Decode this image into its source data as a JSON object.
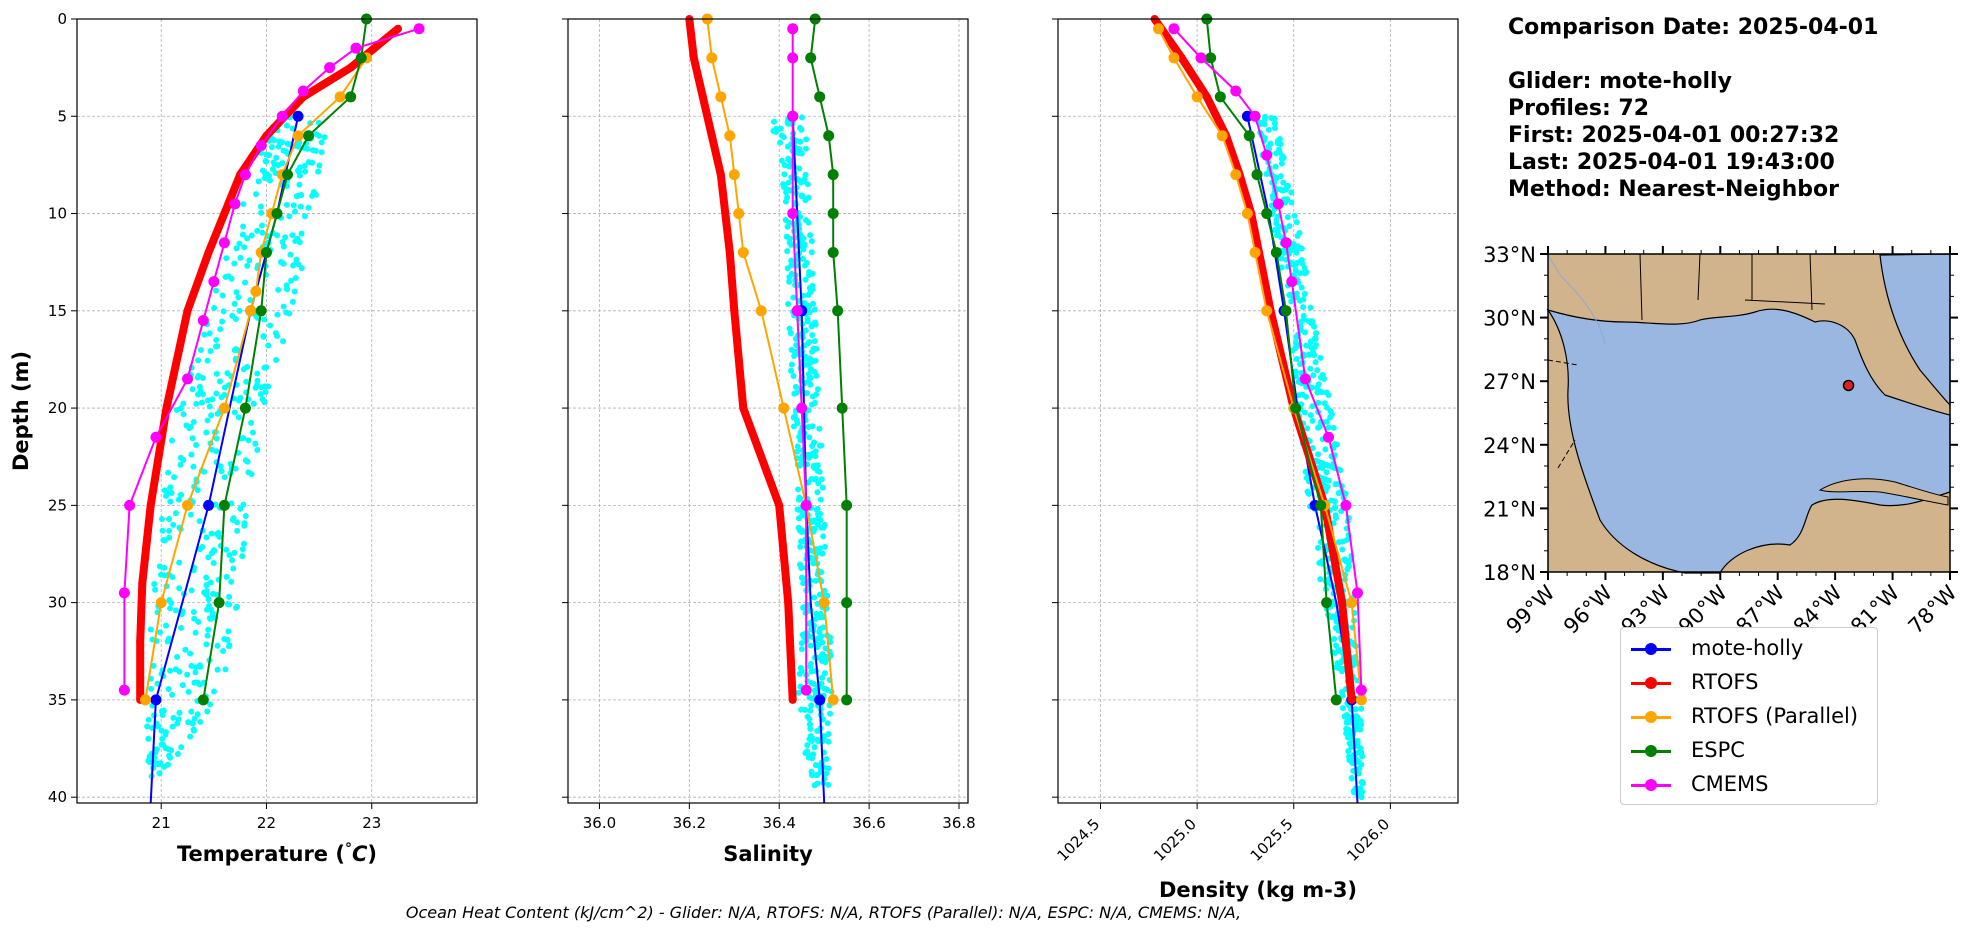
{
  "info": {
    "comparison_date": "Comparison Date: 2025-04-01",
    "glider": "Glider: mote-holly",
    "profiles": "Profiles: 72",
    "first": "First: 2025-04-01 00:27:32",
    "last": "Last: 2025-04-01 19:43:00",
    "method": "Method: Nearest-Neighbor"
  },
  "footer_text": "Ocean Heat Content (kJ/cm^2) - Glider: N/A,  RTOFS: N/A,  RTOFS (Parallel): N/A,  ESPC: N/A,  CMEMS: N/A,",
  "legend": [
    {
      "label": "mote-holly",
      "color": "#0000ff"
    },
    {
      "label": "RTOFS",
      "color": "#ff0000"
    },
    {
      "label": "RTOFS (Parallel)",
      "color": "#ffa500"
    },
    {
      "label": "ESPC",
      "color": "#008000"
    },
    {
      "label": "CMEMS",
      "color": "#ff00ff"
    }
  ],
  "chart_data": [
    {
      "type": "line",
      "xlabel": "Temperature (°C)",
      "ylabel": "Depth (m)",
      "xlim": [
        20.2,
        24.0
      ],
      "ylim": [
        40.3,
        0
      ],
      "xticks": [
        21,
        22,
        23
      ],
      "xtick_labels": [
        "21",
        "22",
        "23"
      ],
      "yticks": [
        0,
        5,
        10,
        15,
        20,
        25,
        30,
        35,
        40
      ],
      "ytick_labels": [
        "0",
        "5",
        "10",
        "15",
        "20",
        "25",
        "30",
        "35",
        "40"
      ],
      "grid": true,
      "glider_scatter_band": {
        "color": "#00ffff",
        "depth": [
          5,
          5,
          10,
          15,
          20,
          25,
          30,
          35,
          39
        ],
        "min": [
          22.35,
          22.05,
          21.75,
          21.45,
          21.15,
          21.0,
          20.9,
          20.85,
          20.85
        ],
        "max": [
          22.65,
          22.6,
          22.45,
          22.25,
          22.0,
          21.85,
          21.75,
          21.55,
          21.0
        ]
      },
      "series": [
        {
          "name": "mote-holly",
          "color": "#0000ff",
          "width": 2,
          "markers": [
            [
              22.3,
              5
            ],
            [
              21.85,
              15
            ],
            [
              21.45,
              25
            ],
            [
              20.95,
              35
            ]
          ],
          "x": [
            22.3,
            22.1,
            21.85,
            21.65,
            21.45,
            21.2,
            20.95,
            20.9
          ],
          "y": [
            5,
            10,
            15,
            20,
            25,
            30,
            35,
            40.3
          ]
        },
        {
          "name": "RTOFS",
          "color": "#ff0000",
          "width": 8,
          "marker_size": 4,
          "x": [
            23.25,
            22.8,
            22.35,
            22.0,
            21.75,
            21.6,
            21.45,
            21.25,
            21.05,
            20.9,
            20.82,
            20.8,
            20.8
          ],
          "y": [
            0.5,
            2.5,
            4,
            6,
            8,
            10,
            12,
            15,
            20,
            25,
            29,
            32,
            35
          ]
        },
        {
          "name": "RTOFS (Parallel)",
          "color": "#ffa500",
          "width": 2,
          "x": [
            22.95,
            22.7,
            22.3,
            22.15,
            22.05,
            21.95,
            21.9,
            21.85,
            21.6,
            21.25,
            21.0,
            20.85
          ],
          "y": [
            2,
            4,
            6,
            8,
            10,
            12,
            14,
            15,
            20,
            25,
            30,
            35
          ]
        },
        {
          "name": "ESPC",
          "color": "#008000",
          "width": 2,
          "x": [
            22.95,
            22.9,
            22.8,
            22.4,
            22.2,
            22.1,
            22.0,
            21.95,
            21.8,
            21.6,
            21.55,
            21.4
          ],
          "y": [
            0,
            2,
            4,
            6,
            8,
            10,
            12,
            15,
            20,
            25,
            30,
            35
          ]
        },
        {
          "name": "CMEMS",
          "color": "#ff00ff",
          "width": 2,
          "x": [
            23.45,
            22.85,
            22.6,
            22.35,
            22.15,
            21.95,
            21.8,
            21.7,
            21.6,
            21.5,
            21.4,
            21.25,
            20.95,
            20.7,
            20.65,
            20.65
          ],
          "y": [
            0.5,
            1.5,
            2.5,
            3.7,
            5,
            6.5,
            8,
            9.5,
            11.5,
            13.5,
            15.5,
            18.5,
            21.5,
            25,
            29.5,
            34.5
          ]
        }
      ]
    },
    {
      "type": "line",
      "xlabel": "Salinity",
      "ylabel": "",
      "xlim": [
        35.93,
        36.82
      ],
      "ylim": [
        40.3,
        0
      ],
      "xticks": [
        36.0,
        36.2,
        36.4,
        36.6,
        36.8
      ],
      "xtick_labels": [
        "36.0",
        "36.2",
        "36.4",
        "36.6",
        "36.8"
      ],
      "yticks": [
        0,
        5,
        10,
        15,
        20,
        25,
        30,
        35,
        40
      ],
      "grid": true,
      "glider_scatter_band": {
        "color": "#00ffff",
        "depth": [
          5,
          10,
          15,
          20,
          25,
          30,
          35,
          39.5
        ],
        "min": [
          36.38,
          36.41,
          36.42,
          36.43,
          36.44,
          36.45,
          36.44,
          36.47
        ],
        "max": [
          36.46,
          36.47,
          36.48,
          36.49,
          36.5,
          36.51,
          36.52,
          36.51
        ]
      },
      "series": [
        {
          "name": "mote-holly",
          "color": "#0000ff",
          "width": 2,
          "markers": [
            [
              36.43,
              5
            ],
            [
              36.45,
              15
            ],
            [
              36.46,
              25
            ],
            [
              36.49,
              35
            ]
          ],
          "x": [
            36.43,
            36.44,
            36.45,
            36.455,
            36.46,
            36.47,
            36.49,
            36.5
          ],
          "y": [
            5,
            10,
            15,
            20,
            25,
            30,
            35,
            40.3
          ]
        },
        {
          "name": "RTOFS",
          "color": "#ff0000",
          "width": 8,
          "marker_size": 4,
          "x": [
            36.2,
            36.21,
            36.23,
            36.25,
            36.27,
            36.28,
            36.29,
            36.3,
            36.32,
            36.4,
            36.42,
            36.43
          ],
          "y": [
            0,
            2,
            4,
            6,
            8,
            10,
            12,
            15,
            20,
            25,
            30,
            35
          ]
        },
        {
          "name": "RTOFS (Parallel)",
          "color": "#ffa500",
          "width": 2,
          "x": [
            36.24,
            36.25,
            36.27,
            36.29,
            36.3,
            36.31,
            36.32,
            36.36,
            36.41,
            36.46,
            36.5,
            36.52
          ],
          "y": [
            0,
            2,
            4,
            6,
            8,
            10,
            12,
            15,
            20,
            25,
            30,
            35
          ]
        },
        {
          "name": "ESPC",
          "color": "#008000",
          "width": 2,
          "x": [
            36.48,
            36.47,
            36.49,
            36.51,
            36.52,
            36.52,
            36.52,
            36.53,
            36.54,
            36.55,
            36.55,
            36.55
          ],
          "y": [
            0,
            2,
            4,
            6,
            8,
            10,
            12,
            15,
            20,
            25,
            30,
            35
          ]
        },
        {
          "name": "CMEMS",
          "color": "#ff00ff",
          "width": 2,
          "x": [
            36.43,
            36.43,
            36.43,
            36.43,
            36.44,
            36.45,
            36.46,
            36.46
          ],
          "y": [
            0.5,
            2,
            5,
            10,
            15,
            20,
            25,
            34.5
          ]
        }
      ]
    },
    {
      "type": "line",
      "xlabel": "Density (kg m-3)",
      "ylabel": "",
      "xlim": [
        1024.28,
        1026.35
      ],
      "ylim": [
        40.3,
        0
      ],
      "xticks": [
        1024.5,
        1025.0,
        1025.5,
        1026.0
      ],
      "xtick_labels": [
        "1024.5",
        "1025.0",
        "1025.5",
        "1026.0"
      ],
      "yticks": [
        0,
        5,
        10,
        15,
        20,
        25,
        30,
        35,
        40
      ],
      "grid": true,
      "glider_scatter_band": {
        "color": "#00ffff",
        "depth": [
          5,
          10,
          15,
          20,
          25,
          30,
          35,
          40
        ],
        "min": [
          1025.3,
          1025.38,
          1025.47,
          1025.52,
          1025.57,
          1025.65,
          1025.75,
          1025.81
        ],
        "max": [
          1025.4,
          1025.52,
          1025.6,
          1025.7,
          1025.78,
          1025.82,
          1025.85,
          1025.86
        ]
      },
      "series": [
        {
          "name": "mote-holly",
          "color": "#0000ff",
          "width": 2,
          "markers": [
            [
              1025.26,
              5
            ],
            [
              1025.45,
              15
            ],
            [
              1025.61,
              25
            ],
            [
              1025.8,
              35
            ]
          ],
          "x": [
            1025.26,
            1025.37,
            1025.45,
            1025.52,
            1025.61,
            1025.72,
            1025.8,
            1025.83
          ],
          "y": [
            5,
            10,
            15,
            20,
            25,
            30,
            35,
            40.3
          ]
        },
        {
          "name": "RTOFS",
          "color": "#ff0000",
          "width": 8,
          "marker_size": 4,
          "x": [
            1024.78,
            1024.92,
            1025.05,
            1025.15,
            1025.22,
            1025.28,
            1025.32,
            1025.38,
            1025.5,
            1025.66,
            1025.75,
            1025.8
          ],
          "y": [
            0,
            2,
            4,
            6,
            8,
            10,
            12,
            15,
            20,
            25,
            30,
            35
          ]
        },
        {
          "name": "RTOFS (Parallel)",
          "color": "#ffa500",
          "width": 2,
          "x": [
            1024.8,
            1024.88,
            1025.0,
            1025.13,
            1025.2,
            1025.26,
            1025.3,
            1025.36,
            1025.5,
            1025.66,
            1025.8,
            1025.85
          ],
          "y": [
            0.5,
            2,
            4,
            6,
            8,
            10,
            12,
            15,
            20,
            25,
            30,
            35
          ]
        },
        {
          "name": "ESPC",
          "color": "#008000",
          "width": 2,
          "x": [
            1025.05,
            1025.07,
            1025.12,
            1025.27,
            1025.31,
            1025.36,
            1025.41,
            1025.46,
            1025.51,
            1025.64,
            1025.67,
            1025.72
          ],
          "y": [
            0,
            2,
            4,
            6,
            8,
            10,
            12,
            15,
            20,
            25,
            30,
            35
          ]
        },
        {
          "name": "CMEMS",
          "color": "#ff00ff",
          "width": 2,
          "x": [
            1024.88,
            1025.02,
            1025.2,
            1025.3,
            1025.36,
            1025.42,
            1025.46,
            1025.49,
            1025.56,
            1025.68,
            1025.77,
            1025.83,
            1025.85
          ],
          "y": [
            0.5,
            2,
            3.7,
            5,
            7,
            9.5,
            11.5,
            13.5,
            18.5,
            21.5,
            25,
            29.5,
            34.5
          ]
        }
      ]
    }
  ],
  "map": {
    "lat_ticks": [
      "33°N",
      "30°N",
      "27°N",
      "24°N",
      "21°N",
      "18°N"
    ],
    "lon_ticks": [
      "99°W",
      "96°W",
      "93°W",
      "90°W",
      "87°W",
      "84°W",
      "81°W",
      "78°W"
    ],
    "lat_range": [
      18,
      33
    ],
    "lon_range": [
      -99,
      -78
    ],
    "glider_marker": {
      "lat": 26.8,
      "lon": -83.3,
      "color": "#e32020"
    },
    "land_color": "#d2b48c",
    "water_color": "#99b7e1"
  }
}
